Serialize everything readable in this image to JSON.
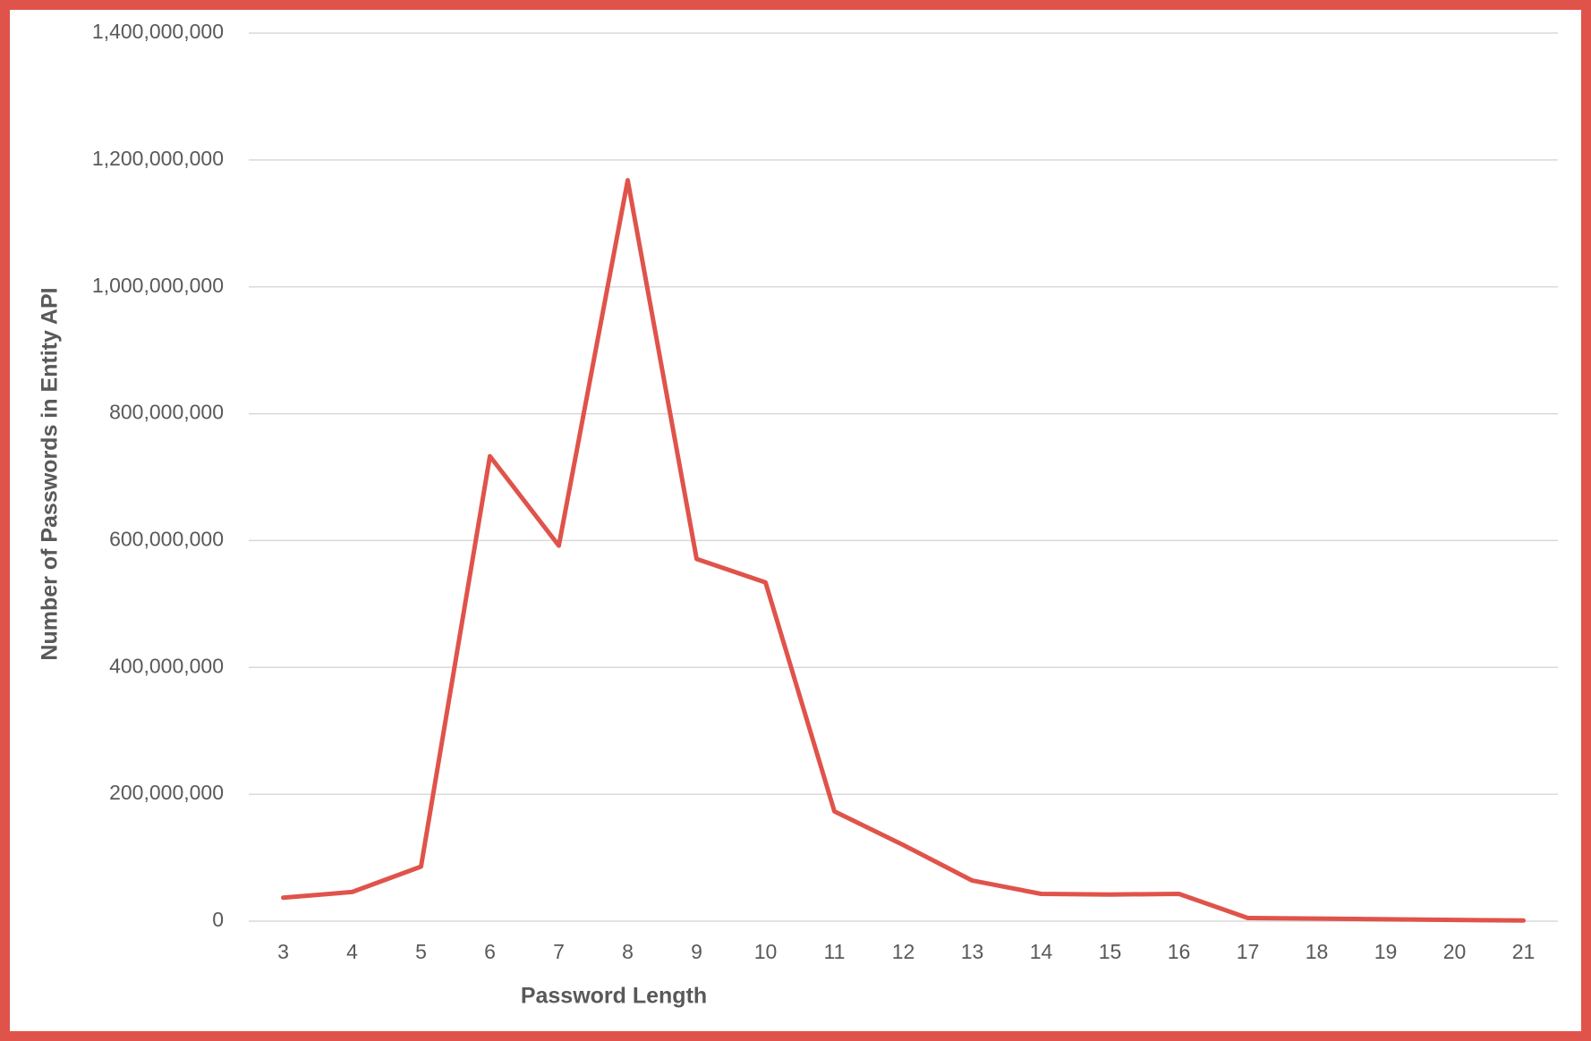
{
  "chart_data": {
    "type": "line",
    "x_label": "Password Length",
    "y_label": "Number of Passwords in Entity API",
    "x": [
      3,
      4,
      5,
      6,
      7,
      8,
      9,
      10,
      11,
      12,
      13,
      14,
      15,
      16,
      17,
      18,
      19,
      20,
      21
    ],
    "series": [
      {
        "color": "#e0534a",
        "values": [
          37000000,
          46000000,
          86000000,
          733000000,
          592000000,
          1168000000,
          571000000,
          534000000,
          173000000,
          120000000,
          64000000,
          43000000,
          42000000,
          43000000,
          5000000,
          4000000,
          3000000,
          2000000,
          1000000
        ]
      }
    ],
    "xlim": [
      2.5,
      21.5
    ],
    "xticks": [
      3,
      4,
      5,
      6,
      7,
      8,
      9,
      10,
      11,
      12,
      13,
      14,
      15,
      16,
      17,
      18,
      19,
      20,
      21
    ],
    "ylim": [
      0,
      1400000000
    ],
    "yticks": [
      0,
      {
        "value": 200000000,
        "label": "200,000,000"
      },
      {
        "value": 400000000,
        "label": "400,000,000"
      },
      {
        "value": 600000000,
        "label": "600,000,000"
      },
      {
        "value": 800000000,
        "label": "800,000,000"
      },
      {
        "value": 1000000000,
        "label": "1,000,000,000"
      },
      {
        "value": 1200000000,
        "label": "1,200,000,000"
      },
      {
        "value": 1400000000,
        "label": "1,400,000,000"
      }
    ],
    "grid": true
  }
}
